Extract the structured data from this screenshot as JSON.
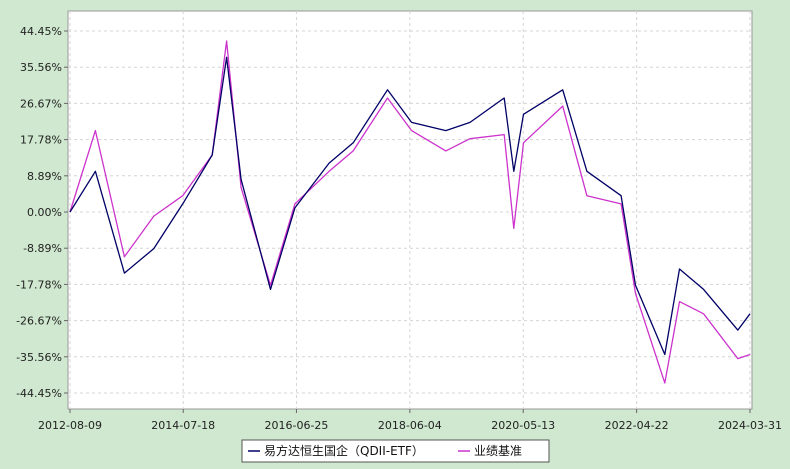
{
  "chart_data": {
    "type": "line",
    "title": "",
    "xlabel": "",
    "ylabel": "",
    "x_ticks": [
      "2012-08-09",
      "2014-07-18",
      "2016-06-25",
      "2018-06-04",
      "2020-05-13",
      "2022-04-22",
      "2024-03-31"
    ],
    "y_ticks": [
      "44.45%",
      "35.56%",
      "26.67%",
      "17.78%",
      "8.89%",
      "0.00%",
      "-8.89%",
      "-17.78%",
      "-26.67%",
      "-35.56%",
      "-44.45%"
    ],
    "ylim": [
      -44.45,
      44.45
    ],
    "xlim": [
      "2012-08-09",
      "2024-03-31"
    ],
    "grid": true,
    "legend_position": "bottom",
    "colors": {
      "fund": "#000066",
      "benchmark": "#cc33cc"
    },
    "x": [
      "2012-08-09",
      "2013-01",
      "2013-07",
      "2014-01",
      "2014-07",
      "2015-01",
      "2015-04",
      "2015-07",
      "2016-01",
      "2016-06",
      "2017-01",
      "2017-06",
      "2018-01",
      "2018-06",
      "2019-01",
      "2019-06",
      "2020-01",
      "2020-03",
      "2020-05",
      "2021-01",
      "2021-06",
      "2022-01",
      "2022-04",
      "2022-10",
      "2023-01",
      "2023-06",
      "2024-01",
      "2024-03-31"
    ],
    "series": [
      {
        "name": "易方达恒生国企（QDII-ETF）",
        "values": [
          0,
          10,
          -15,
          -9,
          2,
          14,
          38,
          8,
          -19,
          1,
          12,
          17,
          30,
          22,
          20,
          22,
          28,
          10,
          24,
          30,
          10,
          4,
          -18,
          -35,
          -14,
          -19,
          -29,
          -25
        ]
      },
      {
        "name": "业绩基准",
        "values": [
          0,
          20,
          -11,
          -1,
          4,
          14,
          42,
          6,
          -18,
          2,
          10,
          15,
          28,
          20,
          15,
          18,
          19,
          -4,
          17,
          26,
          4,
          2,
          -20,
          -42,
          -22,
          -25,
          -36,
          -35
        ]
      }
    ]
  }
}
